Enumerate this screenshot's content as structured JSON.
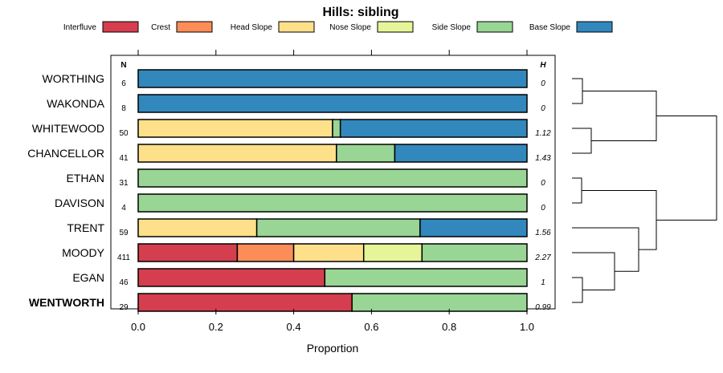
{
  "chart_data": {
    "type": "bar",
    "stacked": true,
    "orientation": "horizontal",
    "title": "Hills: sibling",
    "xlabel": "Proportion",
    "ylabel": "",
    "xlim": [
      0,
      1
    ],
    "xticks": [
      "0.0",
      "0.2",
      "0.4",
      "0.6",
      "0.8",
      "1.0"
    ],
    "n_header": "N",
    "h_header": "H",
    "highlight": "WENTWORTH",
    "legend_position": "top",
    "legend": [
      {
        "name": "Interfluve",
        "color": "#d53e4f"
      },
      {
        "name": "Crest",
        "color": "#fc8d59"
      },
      {
        "name": "Head Slope",
        "color": "#fee08b"
      },
      {
        "name": "Nose Slope",
        "color": "#e6f598"
      },
      {
        "name": "Side Slope",
        "color": "#99d594"
      },
      {
        "name": "Base Slope",
        "color": "#3288bd"
      }
    ],
    "rows": [
      {
        "label": "WORTHING",
        "n": "6",
        "h": "0",
        "values": [
          0,
          0,
          0,
          0,
          0,
          1.0
        ]
      },
      {
        "label": "WAKONDA",
        "n": "8",
        "h": "0",
        "values": [
          0,
          0,
          0,
          0,
          0,
          1.0
        ]
      },
      {
        "label": "WHITEWOOD",
        "n": "50",
        "h": "1.12",
        "values": [
          0,
          0,
          0.5,
          0,
          0.02,
          0.48
        ]
      },
      {
        "label": "CHANCELLOR",
        "n": "41",
        "h": "1.43",
        "values": [
          0,
          0,
          0.51,
          0,
          0.15,
          0.34
        ]
      },
      {
        "label": "ETHAN",
        "n": "31",
        "h": "0",
        "values": [
          0,
          0,
          0,
          0,
          1.0,
          0
        ]
      },
      {
        "label": "DAVISON",
        "n": "4",
        "h": "0",
        "values": [
          0,
          0,
          0,
          0,
          1.0,
          0
        ]
      },
      {
        "label": "TRENT",
        "n": "59",
        "h": "1.56",
        "values": [
          0,
          0,
          0.305,
          0,
          0.42,
          0.275
        ]
      },
      {
        "label": "MOODY",
        "n": "411",
        "h": "2.27",
        "values": [
          0.255,
          0.145,
          0.18,
          0.15,
          0.27,
          0
        ]
      },
      {
        "label": "EGAN",
        "n": "46",
        "h": "1",
        "values": [
          0.48,
          0,
          0,
          0,
          0.52,
          0
        ]
      },
      {
        "label": "WENTWORTH",
        "n": "29",
        "h": "0.99",
        "values": [
          0.55,
          0,
          0,
          0,
          0.45,
          0
        ]
      }
    ],
    "dendrogram": {
      "type": "hierarchical-clustering",
      "merges": [
        [
          "WORTHING",
          "WAKONDA"
        ],
        [
          "WHITEWOOD",
          "CHANCELLOR"
        ],
        [
          "ETHAN",
          "DAVISON"
        ],
        [
          "EGAN",
          "WENTWORTH"
        ],
        [
          "MOODY",
          "EGAN+WENTWORTH"
        ],
        [
          "TRENT",
          "MOODY+EGAN+WENTWORTH"
        ],
        [
          "WORTHING+WAKONDA",
          "WHITEWOOD+CHANCELLOR"
        ],
        [
          "ETHAN+DAVISON",
          "TRENT+MOODY+EGAN+WENTWORTH"
        ],
        [
          "upper-cluster",
          "lower-cluster"
        ]
      ]
    }
  }
}
